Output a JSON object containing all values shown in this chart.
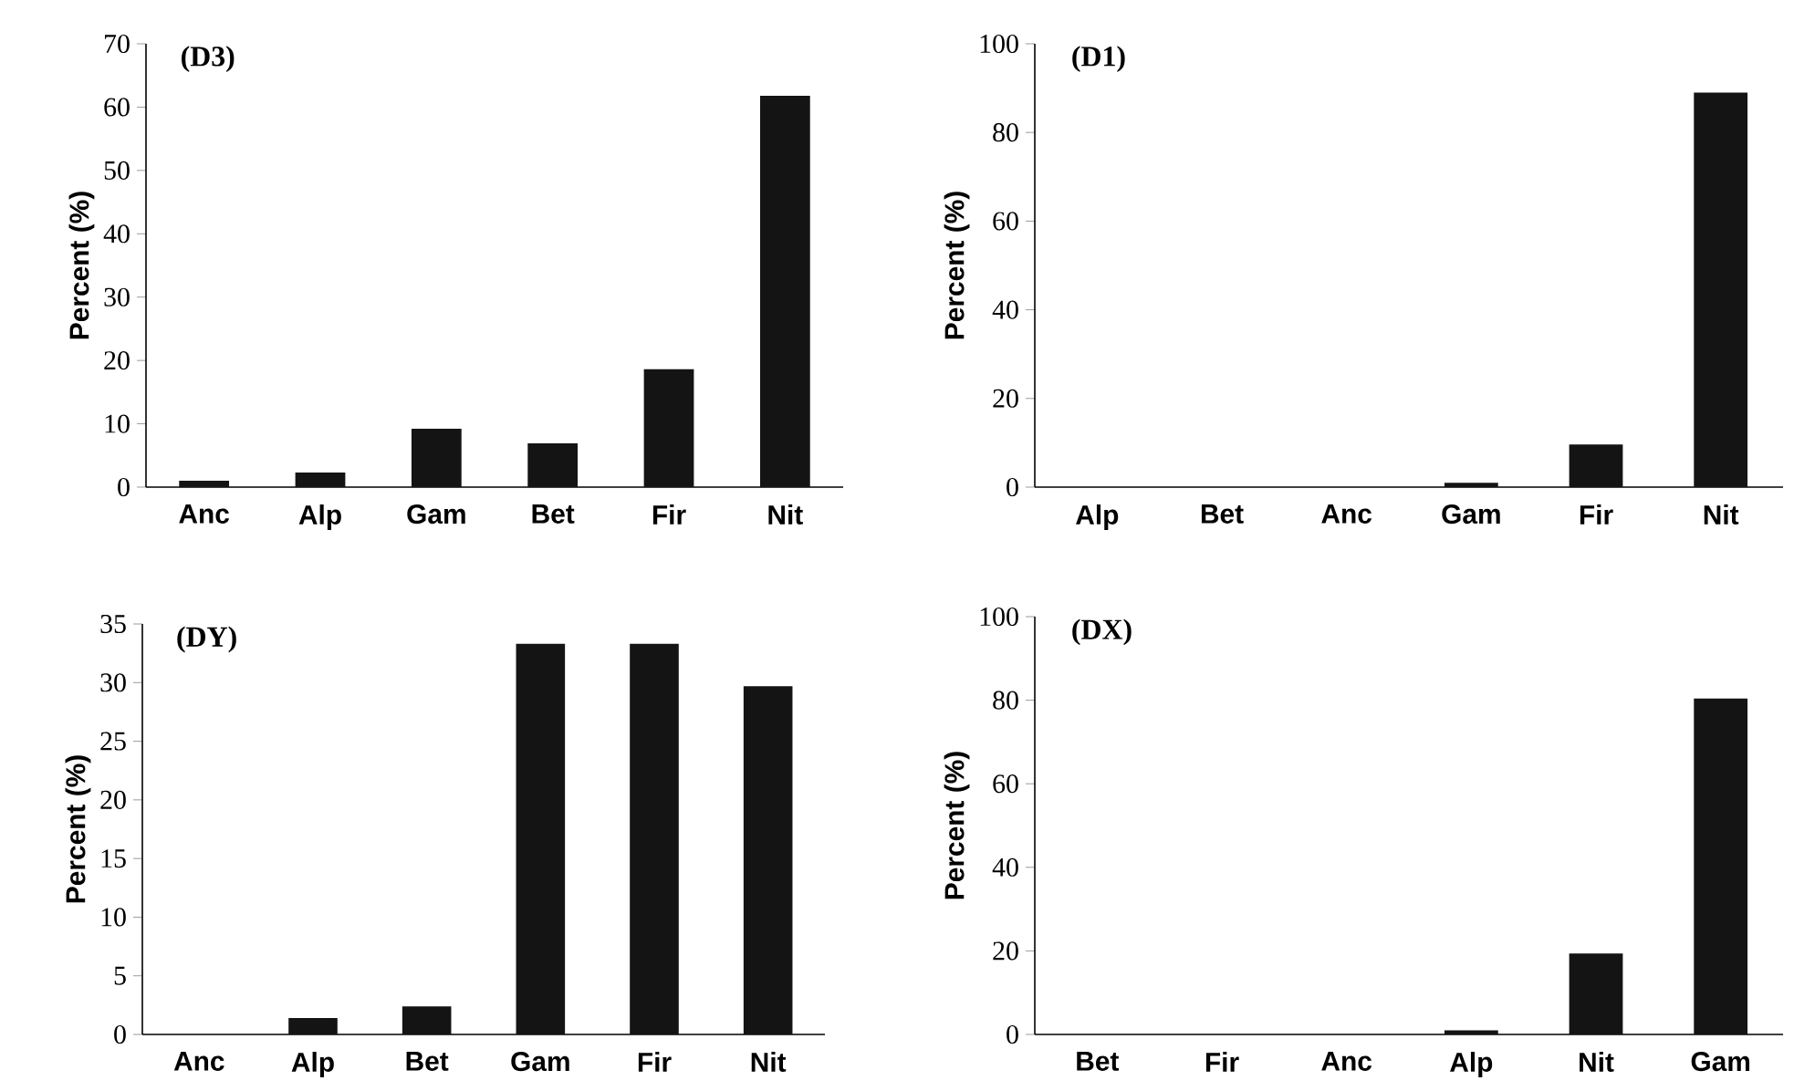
{
  "chart_data": [
    {
      "type": "bar",
      "title": "(D3)",
      "ylabel": "Percent (%)",
      "categories": [
        "Anc",
        "Alp",
        "Gam",
        "Bet",
        "Fir",
        "Nit"
      ],
      "values": [
        1,
        2.3,
        9.2,
        6.9,
        18.6,
        61.8
      ],
      "color": "#141414",
      "ylim": [
        0,
        70
      ],
      "yticks": [
        0,
        10,
        20,
        30,
        40,
        50,
        60,
        70
      ]
    },
    {
      "type": "bar",
      "title": "(D1)",
      "ylabel": "Percent (%)",
      "categories": [
        "Alp",
        "Bet",
        "Anc",
        "Gam",
        "Fir",
        "Nit"
      ],
      "values": [
        0,
        0,
        0,
        1,
        9.6,
        89
      ],
      "color": "#141414",
      "ylim": [
        0,
        100
      ],
      "yticks": [
        0,
        20,
        40,
        60,
        80,
        100
      ]
    },
    {
      "type": "bar",
      "title": "(DY)",
      "ylabel": "Percent (%)",
      "categories": [
        "Anc",
        "Alp",
        "Bet",
        "Gam",
        "Fir",
        "Nit"
      ],
      "values": [
        0,
        1.4,
        2.4,
        33.3,
        33.3,
        29.7
      ],
      "color": "#141414",
      "ylim": [
        0,
        35
      ],
      "yticks": [
        0,
        5,
        10,
        15,
        20,
        25,
        30,
        35
      ]
    },
    {
      "type": "bar",
      "title": "(DX)",
      "ylabel": "Percent (%)",
      "categories": [
        "Bet",
        "Fir",
        "Anc",
        "Alp",
        "Nit",
        "Gam"
      ],
      "values": [
        0,
        0,
        0,
        1,
        19.4,
        80.4
      ],
      "color": "#141414",
      "ylim": [
        0,
        100
      ],
      "yticks": [
        0,
        20,
        40,
        60,
        80,
        100
      ]
    }
  ]
}
